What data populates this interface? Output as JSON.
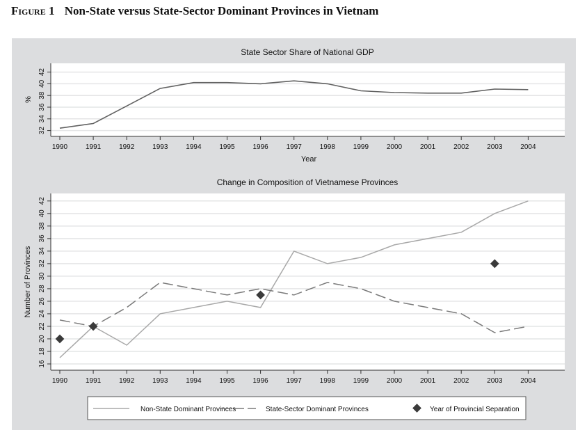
{
  "figure": {
    "label": "Figure 1",
    "title": "Non-State versus State-Sector Dominant Provinces in Vietnam"
  },
  "colors": {
    "panel_bg": "#dcdddf",
    "plot_bg": "#ffffff",
    "grid": "#e4e5e6",
    "gdp_line": "#616161",
    "non_state_line": "#a8a8a8",
    "state_line": "#7a7a7a",
    "marker": "#3a3a3a"
  },
  "chart_data": [
    {
      "type": "line",
      "title": "State Sector Share of National GDP",
      "xlabel": "Year",
      "ylabel": "%",
      "x": [
        1990,
        1991,
        1992,
        1993,
        1994,
        1995,
        1996,
        1997,
        1998,
        1999,
        2000,
        2001,
        2002,
        2003,
        2004
      ],
      "xticks": [
        "1990",
        "1991",
        "1992",
        "1993",
        "1994",
        "1995",
        "1996",
        "1997",
        "1998",
        "1999",
        "2000",
        "2001",
        "2002",
        "2003",
        "2004"
      ],
      "yticks": [
        "32",
        "34",
        "36",
        "38",
        "40",
        "42"
      ],
      "ylim": [
        31,
        43.5
      ],
      "grid": true,
      "series": [
        {
          "name": "State Sector Share of National GDP",
          "values": [
            32.4,
            33.2,
            36.2,
            39.2,
            40.2,
            40.2,
            40.0,
            40.5,
            40.0,
            38.8,
            38.5,
            38.4,
            38.4,
            39.1,
            39.0
          ]
        }
      ]
    },
    {
      "type": "line",
      "title": "Change in Composition of Vietnamese Provinces",
      "xlabel": "",
      "ylabel": "Number of Provinces",
      "x": [
        1990,
        1991,
        1992,
        1993,
        1994,
        1995,
        1996,
        1997,
        1998,
        1999,
        2000,
        2001,
        2002,
        2003,
        2004
      ],
      "xticks": [
        "1990",
        "1991",
        "1992",
        "1993",
        "1994",
        "1995",
        "1996",
        "1997",
        "1998",
        "1999",
        "2000",
        "2001",
        "2002",
        "2003",
        "2004"
      ],
      "yticks": [
        "16",
        "18",
        "20",
        "22",
        "24",
        "26",
        "28",
        "30",
        "32",
        "34",
        "36",
        "38",
        "40",
        "42"
      ],
      "ylim": [
        15,
        43.2
      ],
      "grid": true,
      "legend_position": "bottom",
      "series": [
        {
          "name": "Non-State Dominant Provinces",
          "style": "solid",
          "values": [
            17,
            22,
            19,
            24,
            25,
            26,
            25,
            34,
            32,
            33,
            35,
            36,
            37,
            40,
            42
          ]
        },
        {
          "name": "State-Sector Dominant Provinces",
          "style": "dashed",
          "values": [
            23,
            22,
            25,
            29,
            28,
            27,
            28,
            27,
            29,
            28,
            26,
            25,
            24,
            21,
            22
          ]
        }
      ],
      "markers": {
        "name": "Year of Provincial Separation",
        "points": [
          {
            "x": 1990,
            "y": 20
          },
          {
            "x": 1991,
            "y": 22
          },
          {
            "x": 1996,
            "y": 27
          },
          {
            "x": 2003,
            "y": 32
          }
        ]
      }
    }
  ]
}
